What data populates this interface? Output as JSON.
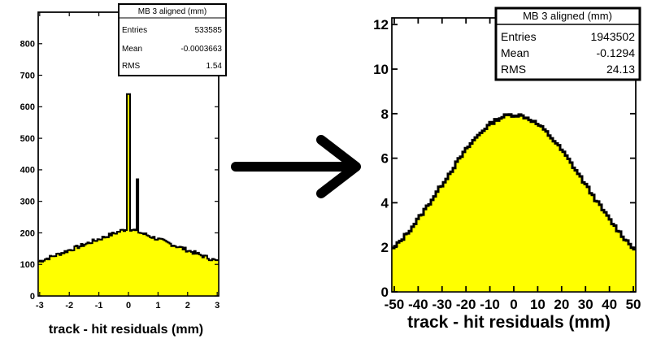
{
  "chart_data": [
    {
      "type": "histogram",
      "stats_title": "MB 3 aligned (mm)",
      "stats": [
        {
          "label": "Entries",
          "value": "533585"
        },
        {
          "label": "Mean",
          "value": "-0.0003663"
        },
        {
          "label": "RMS",
          "value": "1.54"
        }
      ],
      "xlabel": "track - hit residuals (mm)",
      "ylabel": "",
      "xlim": [
        -3.05,
        3.05
      ],
      "ylim": [
        0,
        900
      ],
      "x_ticks": [
        -3,
        -2,
        -1,
        0,
        1,
        2,
        3
      ],
      "y_ticks": [
        0,
        100,
        200,
        300,
        400,
        500,
        600,
        700,
        800
      ],
      "fill_color": "#ffff00",
      "curve": {
        "baseline_center": 215,
        "baseline_edge": 110,
        "noise": 6
      },
      "spikes": [
        {
          "x": 0.0,
          "y": 640
        },
        {
          "x": 0.3,
          "y": 370
        }
      ]
    },
    {
      "type": "histogram",
      "stats_title": "MB 3 aligned (mm)",
      "stats": [
        {
          "label": "Entries",
          "value": "1943502"
        },
        {
          "label": "Mean",
          "value": "-0.1294"
        },
        {
          "label": "RMS",
          "value": "24.13"
        }
      ],
      "xlabel": "track - hit residuals (mm)",
      "ylabel": "",
      "xlim": [
        -51,
        51
      ],
      "ylim": [
        0,
        12.3
      ],
      "x_ticks": [
        -50,
        -40,
        -30,
        -20,
        -10,
        0,
        10,
        20,
        30,
        40,
        50
      ],
      "y_ticks": [
        0,
        2,
        4,
        6,
        8,
        10,
        12
      ],
      "fill_color": "#ffff00",
      "curve": {
        "peak": 7.95,
        "sigma": 30,
        "noise": 0.08
      }
    }
  ],
  "arrow": {
    "direction": "right",
    "color": "#000000"
  }
}
